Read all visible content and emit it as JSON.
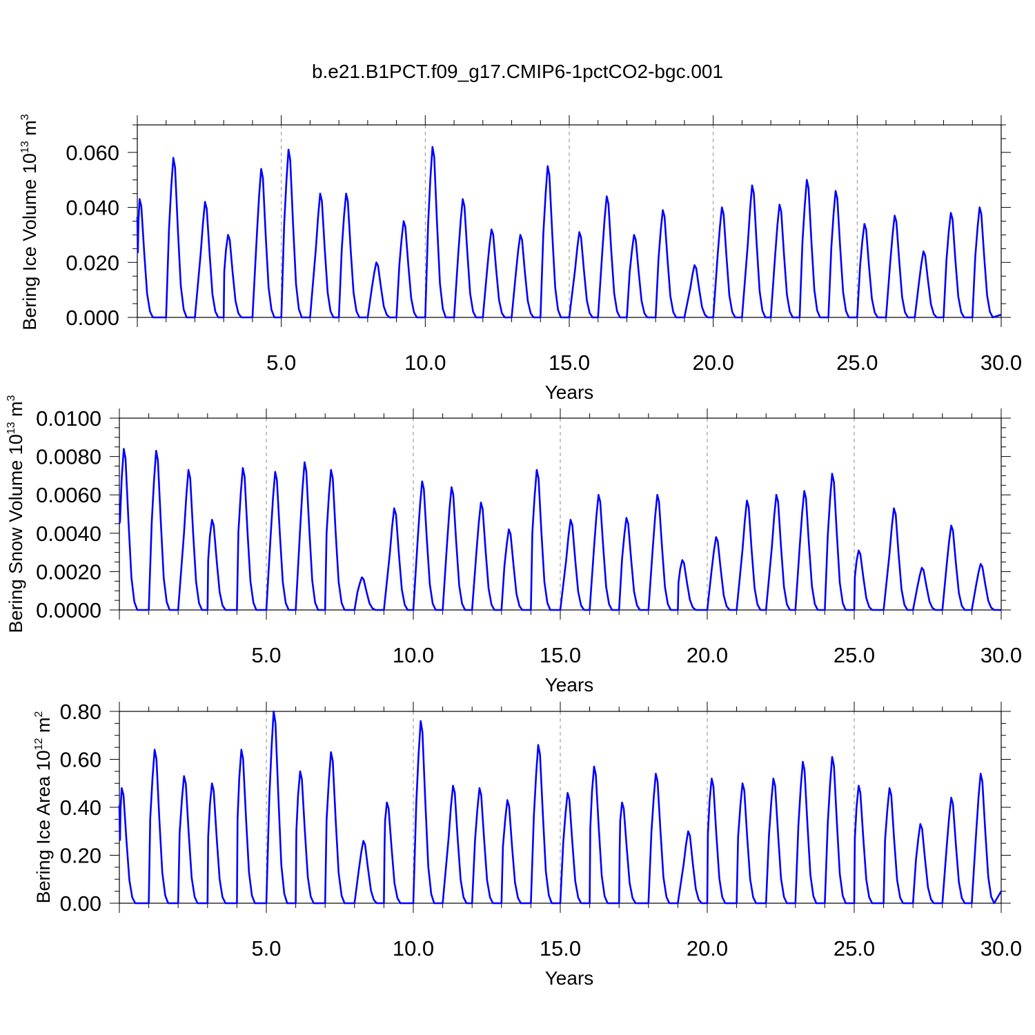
{
  "title": "b.e21.B1PCT.f09_g17.CMIP6-1pctCO2-bgc.001",
  "line_color": "#0000ff",
  "chart_data": [
    {
      "type": "line",
      "title": "",
      "xlabel": "Years",
      "ylabel": "Bering Ice Volume",
      "yunit_base": "10",
      "yunit_exp": "13",
      "yunit_unit": "m",
      "yunit_unit_exp": "3",
      "xlim": [
        0.0,
        30.0
      ],
      "ylim": [
        0.0,
        0.07
      ],
      "xticks": [
        "5.0",
        "10.0",
        "15.0",
        "20.0",
        "25.0",
        "30.0"
      ],
      "yticks": [
        "0.000",
        "0.020",
        "0.040",
        "0.060"
      ],
      "ytick_values": [
        0.0,
        0.02,
        0.04,
        0.06
      ],
      "grid": "dashed vertical at major x ticks",
      "series": [
        {
          "peaks": [
            0.043,
            0.058,
            0.042,
            0.03,
            0.054,
            0.061,
            0.045,
            0.045,
            0.02,
            0.035,
            0.062,
            0.043,
            0.032,
            0.03,
            0.055,
            0.031,
            0.044,
            0.03,
            0.039,
            0.019,
            0.04,
            0.048,
            0.041,
            0.05,
            0.046,
            0.034,
            0.037,
            0.024,
            0.038,
            0.04
          ],
          "peak_offset": [
            0.08,
            0.25,
            0.35,
            0.15,
            0.3,
            0.25,
            0.35,
            0.25,
            0.3,
            0.25,
            0.25,
            0.3,
            0.3,
            0.3,
            0.25,
            0.35,
            0.3,
            0.25,
            0.25,
            0.35,
            0.3,
            0.35,
            0.3,
            0.25,
            0.25,
            0.25,
            0.3,
            0.3,
            0.25,
            0.25
          ],
          "end_value": 0.001
        }
      ]
    },
    {
      "type": "line",
      "title": "",
      "xlabel": "Years",
      "ylabel": "Bering Snow Volume",
      "yunit_base": "10",
      "yunit_exp": "13",
      "yunit_unit": "m",
      "yunit_unit_exp": "3",
      "xlim": [
        0.0,
        30.0
      ],
      "ylim": [
        0.0,
        0.01
      ],
      "xticks": [
        "5.0",
        "10.0",
        "15.0",
        "20.0",
        "25.0",
        "30.0"
      ],
      "yticks": [
        "0.0000",
        "0.0020",
        "0.0040",
        "0.0060",
        "0.0080",
        "0.0100"
      ],
      "ytick_values": [
        0.0,
        0.002,
        0.004,
        0.006,
        0.008,
        0.01
      ],
      "grid": "dashed vertical at major x ticks",
      "series": [
        {
          "start_value": 0.0045,
          "peaks": [
            0.0084,
            0.0083,
            0.0073,
            0.0047,
            0.0074,
            0.0072,
            0.0077,
            0.0073,
            0.0017,
            0.0053,
            0.0067,
            0.0064,
            0.0056,
            0.0042,
            0.0073,
            0.0047,
            0.006,
            0.0048,
            0.006,
            0.0026,
            0.0038,
            0.0057,
            0.006,
            0.0062,
            0.0071,
            0.0031,
            0.0053,
            0.0022,
            0.0044,
            0.0024
          ],
          "peak_offset": [
            0.15,
            0.25,
            0.35,
            0.15,
            0.2,
            0.3,
            0.3,
            0.2,
            0.25,
            0.35,
            0.3,
            0.3,
            0.3,
            0.25,
            0.2,
            0.35,
            0.3,
            0.25,
            0.3,
            0.15,
            0.3,
            0.35,
            0.35,
            0.3,
            0.25,
            0.15,
            0.35,
            0.3,
            0.3,
            0.3
          ],
          "end_value": 0.0
        }
      ]
    },
    {
      "type": "line",
      "title": "",
      "xlabel": "Years",
      "ylabel": "Bering Ice Area",
      "yunit_base": "10",
      "yunit_exp": "12",
      "yunit_unit": "m",
      "yunit_unit_exp": "2",
      "xlim": [
        0.0,
        30.0
      ],
      "ylim": [
        0.0,
        0.8
      ],
      "xticks": [
        "5.0",
        "10.0",
        "15.0",
        "20.0",
        "25.0",
        "30.0"
      ],
      "yticks": [
        "0.00",
        "0.20",
        "0.40",
        "0.60",
        "0.80"
      ],
      "ytick_values": [
        0.0,
        0.2,
        0.4,
        0.6,
        0.8
      ],
      "grid": "dashed vertical at major x ticks",
      "series": [
        {
          "peaks": [
            0.48,
            0.64,
            0.53,
            0.5,
            0.64,
            0.8,
            0.55,
            0.63,
            0.26,
            0.42,
            0.76,
            0.49,
            0.48,
            0.43,
            0.66,
            0.46,
            0.57,
            0.42,
            0.54,
            0.3,
            0.52,
            0.5,
            0.52,
            0.59,
            0.61,
            0.49,
            0.48,
            0.33,
            0.44,
            0.54
          ],
          "peak_offset": [
            0.08,
            0.2,
            0.2,
            0.15,
            0.15,
            0.25,
            0.15,
            0.2,
            0.3,
            0.1,
            0.25,
            0.35,
            0.25,
            0.2,
            0.25,
            0.25,
            0.15,
            0.1,
            0.25,
            0.35,
            0.15,
            0.2,
            0.25,
            0.25,
            0.25,
            0.15,
            0.2,
            0.25,
            0.3,
            0.3
          ],
          "end_value": 0.05
        }
      ]
    }
  ]
}
